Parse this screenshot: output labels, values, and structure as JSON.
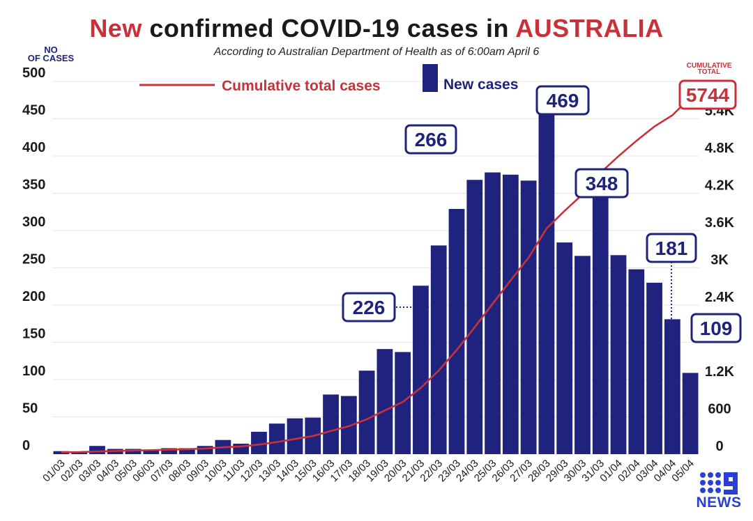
{
  "title": {
    "part1": "New",
    "part2": " confirmed COVID-19 cases in ",
    "part3": "AUSTRALIA"
  },
  "subtitle": "According to Australian Department of Health as of 6:00am April 6",
  "left_axis_title": {
    "line1": "NO",
    "line2": "OF CASES"
  },
  "right_axis_title": {
    "line1": "CUMULATIVE",
    "line2": "TOTAL"
  },
  "logo": {
    "text": "NEWS",
    "icon": "nine-network-logo-icon"
  },
  "colors": {
    "bar": "#1f237d",
    "line": "#c8313a",
    "grid": "#e6e6e6",
    "text": "#1a1a1a",
    "accent_red": "#c8313a"
  },
  "chart_data": {
    "type": "bar",
    "categories": [
      "01/03",
      "02/03",
      "03/03",
      "04/03",
      "05/03",
      "06/03",
      "07/03",
      "08/03",
      "09/03",
      "10/03",
      "11/03",
      "12/03",
      "13/03",
      "14/03",
      "15/03",
      "16/03",
      "17/03",
      "18/03",
      "19/03",
      "20/03",
      "21/03",
      "22/03",
      "23/03",
      "24/03",
      "25/03",
      "26/03",
      "27/03",
      "28/03",
      "29/03",
      "30/03",
      "31/03",
      "01/04",
      "02/04",
      "03/04",
      "04/04",
      "05/04"
    ],
    "series": [
      {
        "name": "New cases",
        "axis": "left",
        "values": [
          4,
          3,
          11,
          7,
          7,
          6,
          8,
          8,
          11,
          19,
          14,
          30,
          41,
          48,
          49,
          80,
          78,
          112,
          141,
          137,
          226,
          280,
          329,
          368,
          378,
          375,
          367,
          469,
          284,
          266,
          348,
          267,
          248,
          230,
          181,
          109
        ]
      },
      {
        "name": "Cumulative total cases",
        "axis": "right",
        "values": [
          30,
          33,
          44,
          51,
          58,
          64,
          72,
          80,
          91,
          110,
          124,
          154,
          195,
          243,
          292,
          372,
          450,
          562,
          703,
          840,
          1066,
          1346,
          1675,
          2043,
          2421,
          2796,
          3163,
          3632,
          3916,
          4182,
          4530,
          4797,
          5045,
          5275,
          5456,
          5744
        ]
      }
    ],
    "left_axis": {
      "ylim": [
        0,
        500
      ],
      "ticks": [
        "0",
        "50",
        "100",
        "150",
        "200",
        "250",
        "300",
        "350",
        "400",
        "450",
        "500"
      ]
    },
    "right_axis": {
      "ylim": [
        0,
        6000
      ],
      "ticks": [
        "0",
        "600",
        "1.2K",
        "1.8K",
        "2.4K",
        "3K",
        "3.6K",
        "4.2K",
        "4.8K",
        "5.4K"
      ]
    },
    "legend": {
      "placement": "top-center",
      "line_label": "Cumulative total cases",
      "bar_label": "New cases"
    },
    "annotations": [
      {
        "text": "469",
        "category": "28/03",
        "kind": "bar"
      },
      {
        "text": "266",
        "category": "30/03",
        "kind": "bar"
      },
      {
        "text": "348",
        "category": "31/03",
        "kind": "bar"
      },
      {
        "text": "226",
        "category": "21/03",
        "kind": "bar"
      },
      {
        "text": "181",
        "category": "04/04",
        "kind": "bar"
      },
      {
        "text": "109",
        "category": "05/04",
        "kind": "bar"
      },
      {
        "text": "5744",
        "category": "05/04",
        "kind": "cumulative"
      }
    ],
    "grid": true
  }
}
